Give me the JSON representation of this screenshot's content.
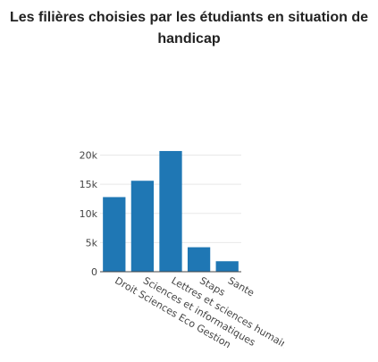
{
  "chart_data": {
    "type": "bar",
    "title": "Les filières choisies par les étudiants en situation de handicap",
    "categories": [
      "Droit Sciences Eco Gestion",
      "Sciences et informatiques",
      "Lettres et sciences humaines",
      "Staps",
      "Sante"
    ],
    "values": [
      12800,
      15600,
      20700,
      4200,
      1800
    ],
    "ylim": [
      0,
      21000
    ],
    "yticks": [
      0,
      5000,
      10000,
      15000,
      20000
    ],
    "ytick_labels": [
      "0",
      "5k",
      "10k",
      "15k",
      "20k"
    ],
    "xlabel": "",
    "ylabel": "",
    "grid": true,
    "bar_color": "#1f77b4"
  }
}
